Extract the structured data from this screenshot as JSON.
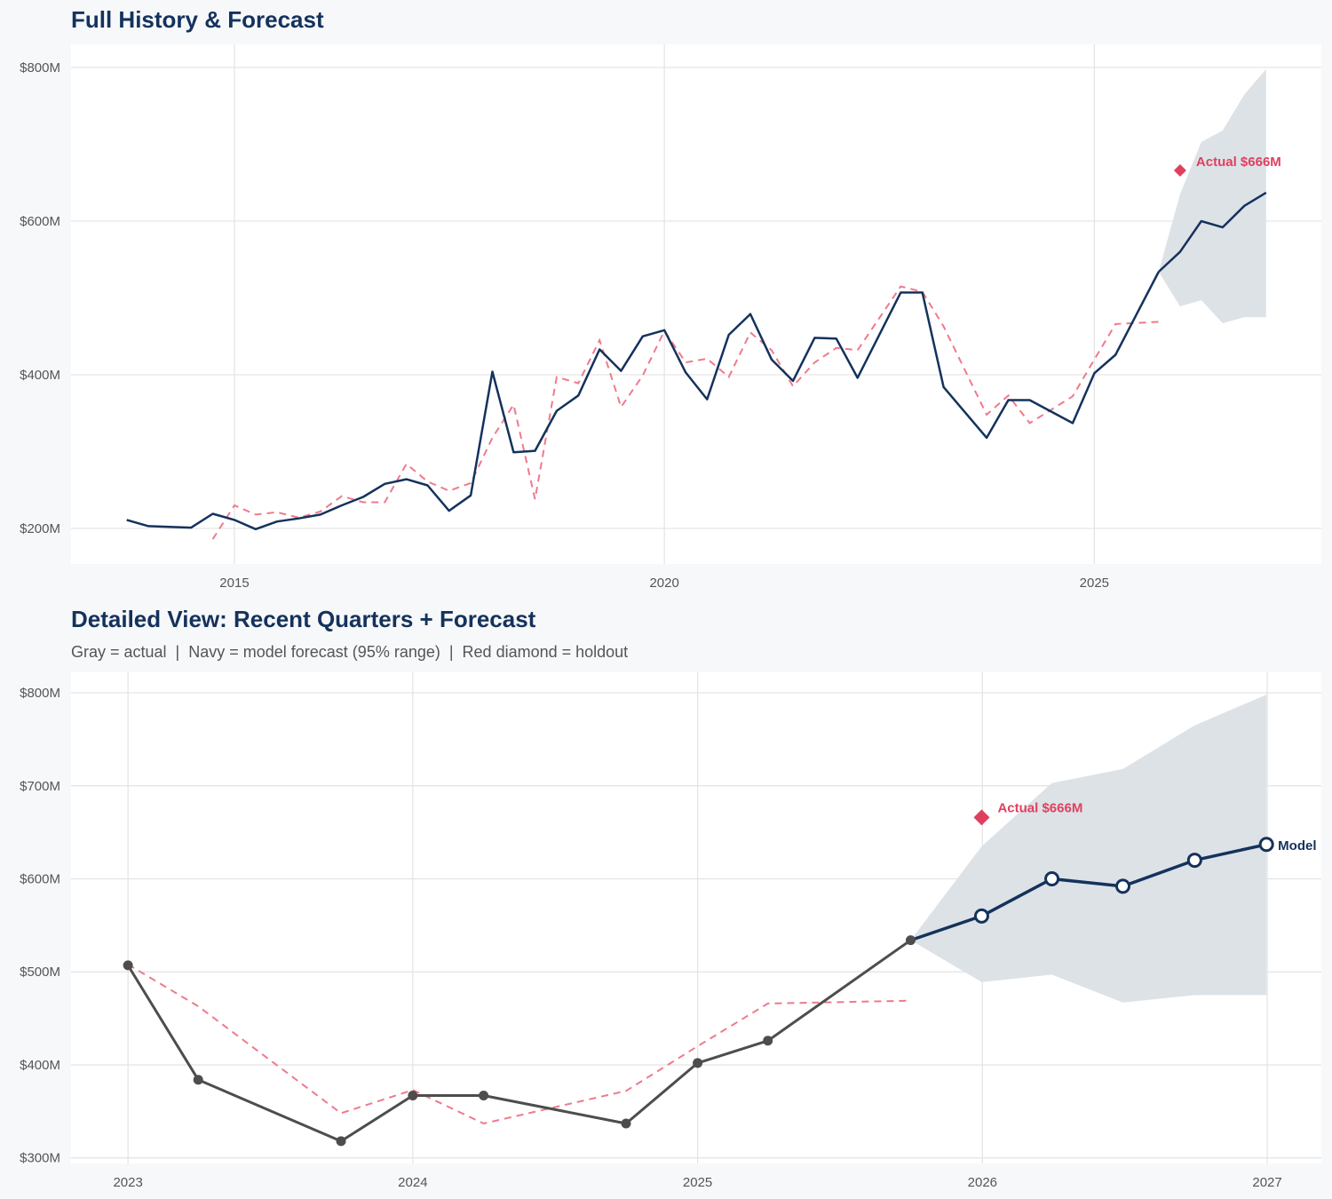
{
  "colors": {
    "navy": "#14325c",
    "actual_gray": "#4d4d4d",
    "fitted_pink": "#ef7a8c",
    "holdout_red": "#e0405e",
    "band": "#dbe0e6",
    "grid": "#e3e3e3",
    "plot_bg": "#ffffff",
    "page_bg": "#f7f8fa"
  },
  "chart_data": [
    {
      "type": "line",
      "title": "Full History & Forecast",
      "xlabel": "",
      "ylabel": "",
      "x_ticks": [
        "2015",
        "2020",
        "2025"
      ],
      "y_ticks": [
        "$200M",
        "$400M",
        "$600M",
        "$800M"
      ],
      "y_tick_values": [
        200,
        400,
        600,
        800
      ],
      "x_tick_values": [
        2015,
        2020,
        2025
      ],
      "xlim": [
        2013.1,
        2027.64
      ],
      "ylim": [
        153.7,
        830
      ],
      "grid": true,
      "units": "$M",
      "series": [
        {
          "role": "actual",
          "style": "solid navy line",
          "x": [
            "2013-10",
            "2014-01",
            "2014-04",
            "2014-07",
            "2014-10",
            "2015-01",
            "2015-04",
            "2015-07",
            "2015-10",
            "2016-01",
            "2016-04",
            "2016-07",
            "2016-10",
            "2017-01",
            "2017-04",
            "2017-07",
            "2017-10",
            "2018-01",
            "2018-04",
            "2018-07",
            "2018-10",
            "2019-01",
            "2019-04",
            "2019-07",
            "2019-10",
            "2020-01",
            "2020-04",
            "2020-07",
            "2020-10",
            "2021-01",
            "2021-04",
            "2021-07",
            "2021-10",
            "2022-01",
            "2022-04",
            "2022-10",
            "2023-01",
            "2023-04",
            "2023-10",
            "2024-01",
            "2024-04",
            "2024-10",
            "2025-01",
            "2025-04",
            "2025-10"
          ],
          "y": [
            211,
            203,
            202,
            201,
            219,
            211,
            199,
            209,
            213,
            218,
            230,
            241,
            258,
            264,
            256,
            223,
            243,
            404,
            299,
            301,
            353,
            373,
            433,
            405,
            450,
            458,
            403,
            368,
            452,
            479,
            420,
            392,
            448,
            447,
            396,
            507,
            507,
            384,
            318,
            367,
            367,
            337,
            402,
            426,
            534
          ]
        },
        {
          "role": "fitted",
          "style": "dashed pink line",
          "x": [
            "2014-10",
            "2015-01",
            "2015-04",
            "2015-07",
            "2015-10",
            "2016-01",
            "2016-04",
            "2016-07",
            "2016-10",
            "2017-01",
            "2017-04",
            "2017-07",
            "2017-10",
            "2018-01",
            "2018-04",
            "2018-07",
            "2018-10",
            "2019-01",
            "2019-04",
            "2019-07",
            "2019-10",
            "2020-01",
            "2020-04",
            "2020-07",
            "2020-10",
            "2021-01",
            "2021-04",
            "2021-07",
            "2021-10",
            "2022-01",
            "2022-04",
            "2022-10",
            "2023-01",
            "2023-04",
            "2023-10",
            "2024-01",
            "2024-04",
            "2024-10",
            "2025-01",
            "2025-04",
            "2025-10"
          ],
          "y": [
            186,
            230,
            218,
            221,
            214,
            222,
            242,
            234,
            234,
            284,
            261,
            249,
            259,
            318,
            361,
            238,
            397,
            389,
            445,
            358,
            399,
            457,
            416,
            421,
            397,
            455,
            432,
            385,
            416,
            435,
            432,
            515,
            508,
            463,
            348,
            373,
            337,
            372,
            420,
            466,
            469
          ]
        },
        {
          "role": "forecast",
          "style": "solid navy line",
          "x": [
            "2025-10",
            "2025-12-31",
            "2026-03-31",
            "2026-06-30",
            "2026-09-30",
            "2026-12-31"
          ],
          "y": [
            534,
            560,
            600,
            592,
            620,
            637
          ],
          "lower": [
            534,
            489,
            497,
            467,
            475,
            475
          ],
          "upper": [
            534,
            635,
            703,
            718,
            765,
            798
          ]
        },
        {
          "role": "holdout",
          "style": "red diamond",
          "x": [
            "2025-12-31"
          ],
          "y": [
            666
          ]
        }
      ],
      "annotations": [
        {
          "text": "Actual $666M",
          "target": "holdout"
        }
      ]
    },
    {
      "type": "line",
      "title": "Detailed View: Recent Quarters + Forecast",
      "subtitle": "Gray = actual  |  Navy = model forecast (95% range)  |  Red diamond = holdout",
      "xlabel": "",
      "ylabel": "",
      "x_ticks": [
        "2023",
        "2024",
        "2025",
        "2026",
        "2027"
      ],
      "x_tick_values": [
        2023,
        2024,
        2025,
        2026,
        2027
      ],
      "y_ticks": [
        "$300M",
        "$400M",
        "$500M",
        "$600M",
        "$700M",
        "$800M"
      ],
      "y_tick_values": [
        300,
        400,
        500,
        600,
        700,
        800
      ],
      "xlim": [
        2022.8,
        2027.19
      ],
      "ylim": [
        294,
        822
      ],
      "grid": true,
      "units": "$M",
      "series": [
        {
          "role": "actual",
          "style": "gray line with dots",
          "x": [
            "2023-01",
            "2023-04",
            "2023-10",
            "2024-01",
            "2024-04",
            "2024-10",
            "2025-01",
            "2025-04",
            "2025-10"
          ],
          "y": [
            507,
            384,
            318,
            367,
            367,
            337,
            402,
            426,
            534
          ]
        },
        {
          "role": "fitted",
          "style": "dashed pink line",
          "x": [
            "2023-01",
            "2023-04",
            "2023-10",
            "2024-01",
            "2024-04",
            "2024-10",
            "2025-01",
            "2025-04",
            "2025-10"
          ],
          "y": [
            508,
            463,
            348,
            373,
            337,
            372,
            420,
            466,
            469
          ]
        },
        {
          "role": "forecast",
          "style": "navy line with hollow markers",
          "x": [
            "2025-10",
            "2025-12-31",
            "2026-03-31",
            "2026-06-30",
            "2026-09-30",
            "2026-12-31"
          ],
          "y": [
            534,
            560,
            600,
            592,
            620,
            637
          ],
          "lower": [
            534,
            489,
            497,
            467,
            475,
            475
          ],
          "upper": [
            534,
            635,
            703,
            718,
            765,
            798
          ]
        },
        {
          "role": "holdout",
          "style": "red diamond",
          "x": [
            "2025-12-31"
          ],
          "y": [
            666
          ]
        }
      ],
      "annotations": [
        {
          "text": "Actual $666M",
          "target": "holdout"
        },
        {
          "text": "Model",
          "target": "forecast-end"
        }
      ]
    }
  ]
}
